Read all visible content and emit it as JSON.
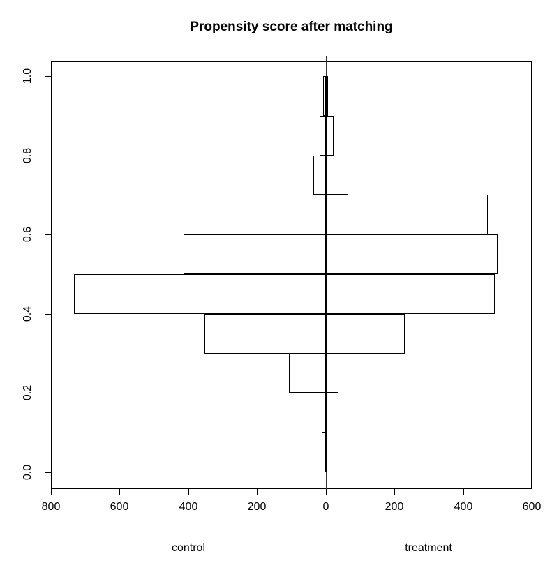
{
  "chart_data": {
    "type": "bar",
    "variant": "back-to-back horizontal histogram (population-pyramid style)",
    "title": "Propensity score after matching",
    "left_side_label": "control",
    "right_side_label": "treatment",
    "xlabel": "",
    "ylabel": "",
    "xlim": [
      -800,
      600
    ],
    "ylim": [
      0,
      1
    ],
    "grid": false,
    "legend_position": "none",
    "x_axis_ticks": [
      {
        "value": -800,
        "label": "800"
      },
      {
        "value": -600,
        "label": "600"
      },
      {
        "value": -400,
        "label": "400"
      },
      {
        "value": -200,
        "label": "200"
      },
      {
        "value": 0,
        "label": "0"
      },
      {
        "value": 200,
        "label": "200"
      },
      {
        "value": 400,
        "label": "400"
      },
      {
        "value": 600,
        "label": "600"
      }
    ],
    "y_axis_ticks": [
      {
        "value": 0.0,
        "label": "0.0"
      },
      {
        "value": 0.2,
        "label": "0.2"
      },
      {
        "value": 0.4,
        "label": "0.4"
      },
      {
        "value": 0.6,
        "label": "0.6"
      },
      {
        "value": 0.8,
        "label": "0.8"
      },
      {
        "value": 1.0,
        "label": "1.0"
      }
    ],
    "bins": [
      {
        "range": [
          0.0,
          0.1
        ],
        "control": 0,
        "treatment": 0
      },
      {
        "range": [
          0.1,
          0.2
        ],
        "control": 11,
        "treatment": 0
      },
      {
        "range": [
          0.2,
          0.3
        ],
        "control": 107,
        "treatment": 37
      },
      {
        "range": [
          0.3,
          0.4
        ],
        "control": 353,
        "treatment": 230
      },
      {
        "range": [
          0.4,
          0.5
        ],
        "control": 732,
        "treatment": 493
      },
      {
        "range": [
          0.5,
          0.6
        ],
        "control": 414,
        "treatment": 501
      },
      {
        "range": [
          0.6,
          0.7
        ],
        "control": 167,
        "treatment": 472
      },
      {
        "range": [
          0.7,
          0.8
        ],
        "control": 36,
        "treatment": 65
      },
      {
        "range": [
          0.8,
          0.9
        ],
        "control": 18,
        "treatment": 23
      },
      {
        "range": [
          0.9,
          1.0
        ],
        "control": 7,
        "treatment": 6
      }
    ],
    "colors": {
      "line": "#000000",
      "bar_border": "#000000",
      "bar_fill": "transparent",
      "background": "#ffffff"
    }
  }
}
